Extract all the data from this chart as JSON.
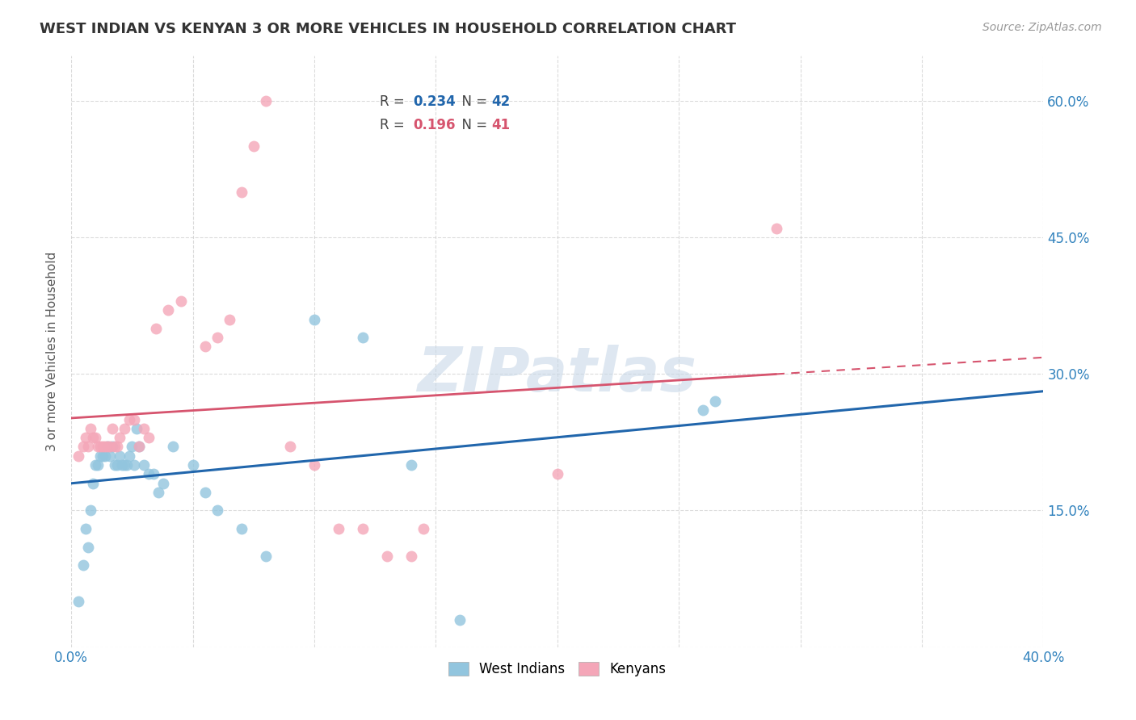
{
  "title": "WEST INDIAN VS KENYAN 3 OR MORE VEHICLES IN HOUSEHOLD CORRELATION CHART",
  "source": "Source: ZipAtlas.com",
  "ylabel": "3 or more Vehicles in Household",
  "xlim": [
    0.0,
    0.4
  ],
  "ylim": [
    0.0,
    0.65
  ],
  "xticks": [
    0.0,
    0.05,
    0.1,
    0.15,
    0.2,
    0.25,
    0.3,
    0.35,
    0.4
  ],
  "yticks": [
    0.0,
    0.15,
    0.3,
    0.45,
    0.6
  ],
  "watermark": "ZIPatlas",
  "blue_color": "#92c5de",
  "pink_color": "#f4a6b8",
  "blue_line_color": "#2166ac",
  "pink_line_color": "#d6546e",
  "legend_R1": "0.234",
  "legend_N1": "42",
  "legend_R2": "0.196",
  "legend_N2": "41",
  "background_color": "#ffffff",
  "grid_color": "#cccccc",
  "west_indian_x": [
    0.003,
    0.005,
    0.006,
    0.007,
    0.008,
    0.009,
    0.01,
    0.011,
    0.012,
    0.013,
    0.014,
    0.015,
    0.016,
    0.017,
    0.018,
    0.019,
    0.02,
    0.021,
    0.022,
    0.023,
    0.024,
    0.025,
    0.026,
    0.027,
    0.028,
    0.03,
    0.032,
    0.034,
    0.036,
    0.038,
    0.042,
    0.05,
    0.055,
    0.06,
    0.07,
    0.08,
    0.1,
    0.12,
    0.14,
    0.16,
    0.26,
    0.265
  ],
  "west_indian_y": [
    0.05,
    0.09,
    0.13,
    0.11,
    0.15,
    0.18,
    0.2,
    0.2,
    0.21,
    0.21,
    0.21,
    0.22,
    0.21,
    0.22,
    0.2,
    0.2,
    0.21,
    0.2,
    0.2,
    0.2,
    0.21,
    0.22,
    0.2,
    0.24,
    0.22,
    0.2,
    0.19,
    0.19,
    0.17,
    0.18,
    0.22,
    0.2,
    0.17,
    0.15,
    0.13,
    0.1,
    0.36,
    0.34,
    0.2,
    0.03,
    0.26,
    0.27
  ],
  "kenyan_x": [
    0.003,
    0.005,
    0.006,
    0.007,
    0.008,
    0.009,
    0.01,
    0.011,
    0.012,
    0.013,
    0.014,
    0.015,
    0.016,
    0.017,
    0.018,
    0.019,
    0.02,
    0.022,
    0.024,
    0.026,
    0.028,
    0.03,
    0.032,
    0.035,
    0.04,
    0.045,
    0.055,
    0.06,
    0.065,
    0.07,
    0.075,
    0.08,
    0.09,
    0.1,
    0.11,
    0.12,
    0.13,
    0.14,
    0.145,
    0.2,
    0.29
  ],
  "kenyan_y": [
    0.21,
    0.22,
    0.23,
    0.22,
    0.24,
    0.23,
    0.23,
    0.22,
    0.22,
    0.22,
    0.22,
    0.22,
    0.22,
    0.24,
    0.22,
    0.22,
    0.23,
    0.24,
    0.25,
    0.25,
    0.22,
    0.24,
    0.23,
    0.35,
    0.37,
    0.38,
    0.33,
    0.34,
    0.36,
    0.5,
    0.55,
    0.6,
    0.22,
    0.2,
    0.13,
    0.13,
    0.1,
    0.1,
    0.13,
    0.19,
    0.46
  ]
}
